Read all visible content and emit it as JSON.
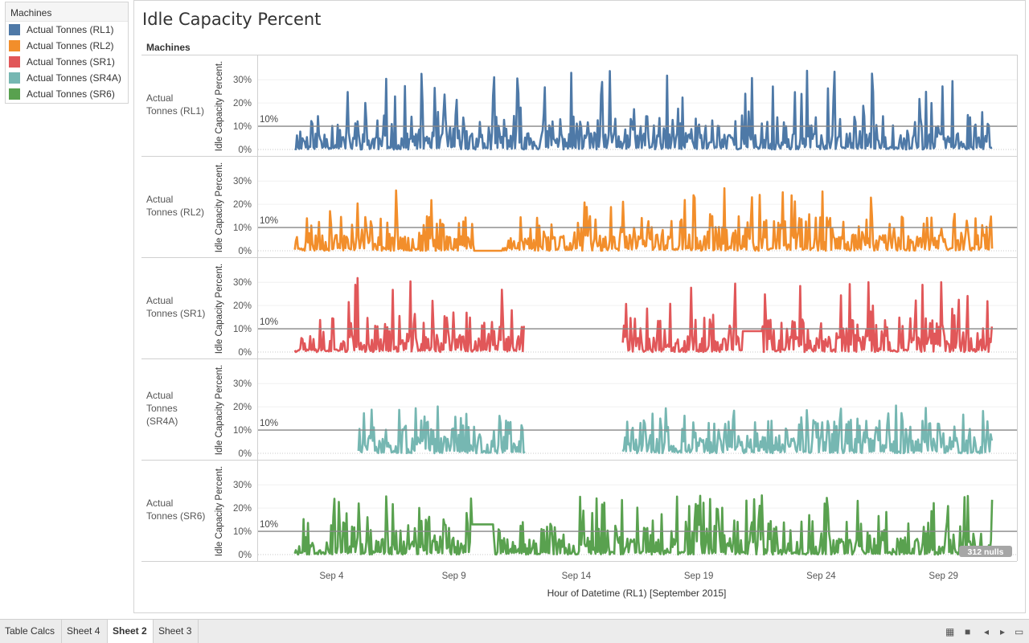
{
  "legend": {
    "title": "Machines",
    "items": [
      {
        "label": "Actual Tonnes (RL1)",
        "color": "#4e79a7"
      },
      {
        "label": "Actual Tonnes (RL2)",
        "color": "#f28e2b"
      },
      {
        "label": "Actual Tonnes (SR1)",
        "color": "#e15759"
      },
      {
        "label": "Actual Tonnes (SR4A)",
        "color": "#76b7b2"
      },
      {
        "label": "Actual Tonnes (SR6)",
        "color": "#59a14f"
      }
    ]
  },
  "tabs": [
    {
      "label": "Table Calcs",
      "active": false
    },
    {
      "label": "Sheet 4",
      "active": false
    },
    {
      "label": "Sheet 2",
      "active": true
    },
    {
      "label": "Sheet 3",
      "active": false
    }
  ],
  "toolbar_icons": [
    "grid-view-icon",
    "filmstrip-icon",
    "prev-sheet-icon",
    "next-sheet-icon",
    "present-icon"
  ],
  "chart_data": {
    "type": "line",
    "title": "Idle Capacity Percent",
    "facet_header": "Machines",
    "xlabel": "Hour of Datetime (RL1) [September 2015]",
    "ylabel": "Idle Capacity Percent.",
    "x_ticks": [
      "Sep 4",
      "Sep 9",
      "Sep 14",
      "Sep 19",
      "Sep 24",
      "Sep 29"
    ],
    "x_tick_days": [
      4,
      9,
      14,
      19,
      24,
      29
    ],
    "x_range_days": [
      1,
      32
    ],
    "y_ticks": [
      "0%",
      "10%",
      "20%",
      "30%"
    ],
    "y_tick_values": [
      0,
      10,
      20,
      30
    ],
    "ylim": [
      0,
      37
    ],
    "reference_line": {
      "value": 10,
      "label": "10%"
    },
    "null_indicator": "312 nulls",
    "series": [
      {
        "name": "Actual Tonnes (RL1)",
        "row_label": [
          "Actual",
          "Tonnes (RL1)"
        ],
        "color": "#4e79a7",
        "seed": 11,
        "segments": [
          [
            2.5,
            31.0
          ]
        ],
        "peak": 36,
        "flat": []
      },
      {
        "name": "Actual Tonnes (RL2)",
        "row_label": [
          "Actual",
          "Tonnes (RL2)"
        ],
        "color": "#f28e2b",
        "seed": 23,
        "segments": [
          [
            2.5,
            31.0
          ]
        ],
        "peak": 29,
        "flat": [
          [
            9.8,
            11.0,
            0
          ]
        ]
      },
      {
        "name": "Actual Tonnes (SR1)",
        "row_label": [
          "Actual",
          "Tonnes (SR1)"
        ],
        "color": "#e15759",
        "seed": 37,
        "segments": [
          [
            2.5,
            11.9
          ],
          [
            15.9,
            31.0
          ]
        ],
        "peak": 34,
        "flat": [
          [
            20.8,
            21.6,
            9
          ]
        ]
      },
      {
        "name": "Actual Tonnes (SR4A)",
        "row_label": [
          "Actual",
          "Tonnes",
          "(SR4A)"
        ],
        "color": "#76b7b2",
        "seed": 51,
        "segments": [
          [
            5.1,
            11.9
          ],
          [
            15.9,
            31.0
          ]
        ],
        "peak": 23,
        "flat": []
      },
      {
        "name": "Actual Tonnes (SR6)",
        "row_label": [
          "Actual",
          "Tonnes (SR6)"
        ],
        "color": "#59a14f",
        "seed": 67,
        "segments": [
          [
            2.5,
            31.0
          ]
        ],
        "peak": 28,
        "flat": [
          [
            9.7,
            10.6,
            13
          ]
        ]
      }
    ]
  }
}
